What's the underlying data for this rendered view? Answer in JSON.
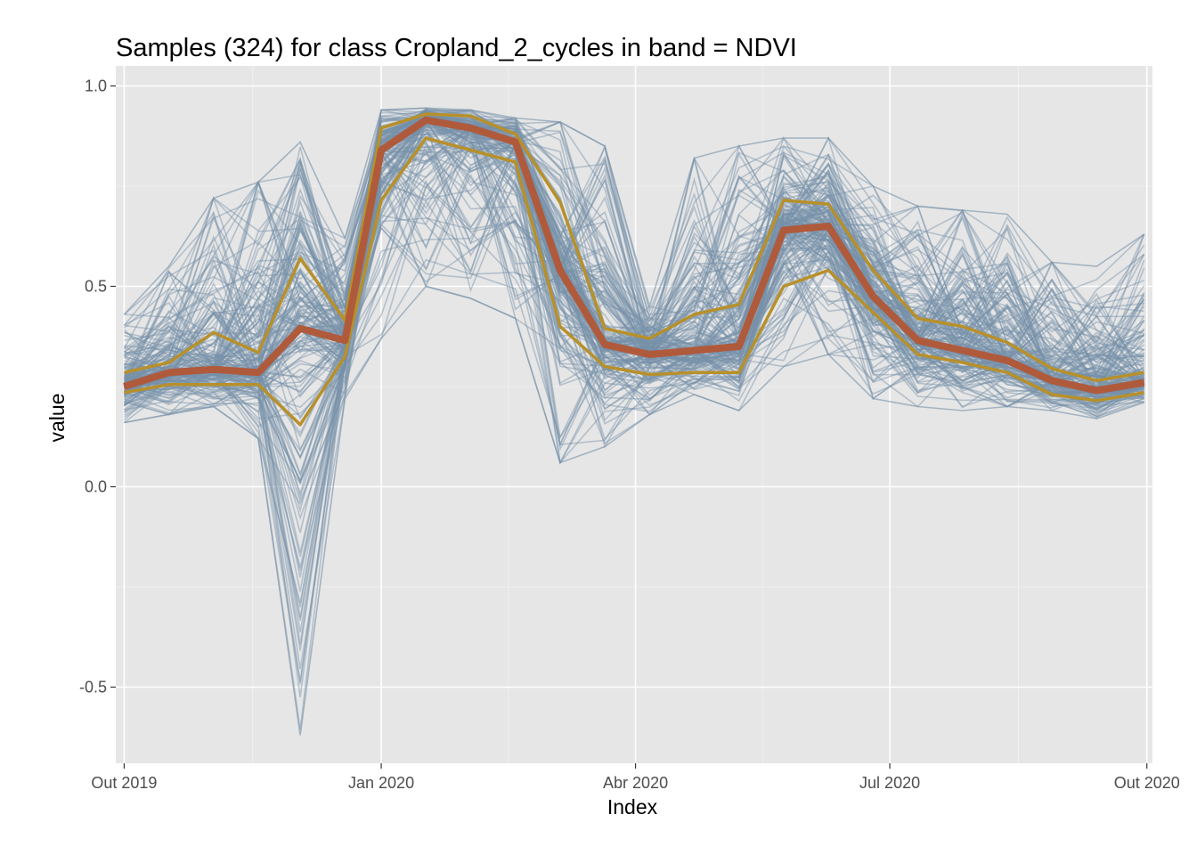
{
  "chart_data": {
    "type": "line",
    "title": "Samples (324) for class Cropland_2_cycles in band = NDVI",
    "xlabel": "Index",
    "ylabel": "value",
    "x_type": "date",
    "xlim": [
      "2019-09-28",
      "2020-10-03"
    ],
    "ylim": [
      -0.69,
      1.05
    ],
    "x_ticks": [
      {
        "date": "2019-10-01",
        "label": "Out 2019"
      },
      {
        "date": "2020-01-01",
        "label": "Jan 2020"
      },
      {
        "date": "2020-04-01",
        "label": "Abr 2020"
      },
      {
        "date": "2020-07-01",
        "label": "Jul 2020"
      },
      {
        "date": "2020-10-01",
        "label": "Out 2020"
      }
    ],
    "y_ticks": [
      {
        "value": -0.5,
        "label": "-0.5"
      },
      {
        "value": 0.0,
        "label": "0.0"
      },
      {
        "value": 0.5,
        "label": "0.5"
      },
      {
        "value": 1.0,
        "label": "1.0"
      }
    ],
    "grid": true,
    "legend": "none",
    "dates": [
      "2019-10-01",
      "2019-10-17",
      "2019-11-02",
      "2019-11-18",
      "2019-12-03",
      "2019-12-19",
      "2020-01-01",
      "2020-01-17",
      "2020-02-02",
      "2020-02-18",
      "2020-03-05",
      "2020-03-21",
      "2020-04-06",
      "2020-04-22",
      "2020-05-08",
      "2020-05-24",
      "2020-06-09",
      "2020-06-25",
      "2020-07-11",
      "2020-07-27",
      "2020-08-12",
      "2020-08-28",
      "2020-09-13",
      "2020-09-30"
    ],
    "series": [
      {
        "role": "median",
        "color": "#b05a3c",
        "values": [
          0.25,
          0.285,
          0.293,
          0.285,
          0.395,
          0.365,
          0.84,
          0.915,
          0.895,
          0.86,
          0.54,
          0.355,
          0.33,
          0.34,
          0.35,
          0.64,
          0.65,
          0.475,
          0.365,
          0.34,
          0.315,
          0.265,
          0.24,
          0.26
        ]
      },
      {
        "role": "upper-quartile",
        "color": "#b8902a",
        "values": [
          0.285,
          0.31,
          0.385,
          0.335,
          0.57,
          0.415,
          0.895,
          0.93,
          0.925,
          0.88,
          0.71,
          0.395,
          0.37,
          0.43,
          0.455,
          0.715,
          0.705,
          0.54,
          0.42,
          0.4,
          0.36,
          0.295,
          0.265,
          0.285
        ]
      },
      {
        "role": "lower-quartile",
        "color": "#b8902a",
        "values": [
          0.235,
          0.255,
          0.255,
          0.255,
          0.155,
          0.325,
          0.715,
          0.87,
          0.84,
          0.81,
          0.4,
          0.3,
          0.28,
          0.285,
          0.285,
          0.5,
          0.54,
          0.435,
          0.33,
          0.31,
          0.285,
          0.23,
          0.215,
          0.235
        ]
      }
    ],
    "samples": {
      "count": 324,
      "color": "#7691a9",
      "envelope_min": [
        0.16,
        0.18,
        0.2,
        0.12,
        -0.62,
        0.22,
        0.37,
        0.5,
        0.47,
        0.42,
        0.06,
        0.1,
        0.18,
        0.23,
        0.19,
        0.3,
        0.33,
        0.22,
        0.2,
        0.19,
        0.2,
        0.19,
        0.17,
        0.21
      ],
      "envelope_max": [
        0.43,
        0.55,
        0.72,
        0.76,
        0.86,
        0.62,
        0.94,
        0.945,
        0.94,
        0.92,
        0.91,
        0.85,
        0.45,
        0.82,
        0.85,
        0.87,
        0.87,
        0.75,
        0.7,
        0.69,
        0.68,
        0.56,
        0.55,
        0.63
      ]
    }
  }
}
